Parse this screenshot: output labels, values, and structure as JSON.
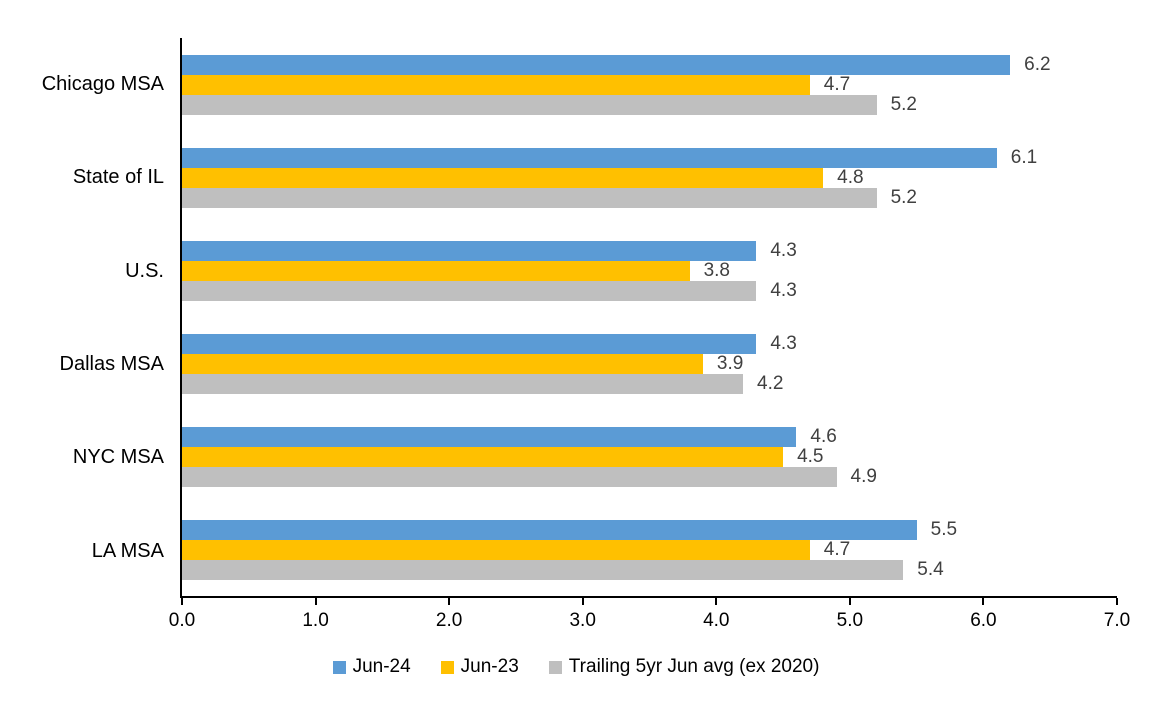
{
  "chart_data": {
    "type": "bar",
    "orientation": "horizontal",
    "title": "",
    "xlabel": "",
    "ylabel": "",
    "categories": [
      "Chicago MSA",
      "State of IL",
      "U.S.",
      "Dallas MSA",
      "NYC MSA",
      "LA MSA"
    ],
    "series": [
      {
        "name": "Jun-24",
        "color": "#5B9BD5",
        "values": [
          6.2,
          6.1,
          4.3,
          4.3,
          4.6,
          5.5
        ]
      },
      {
        "name": "Jun-23",
        "color": "#FFC000",
        "values": [
          4.7,
          4.8,
          3.8,
          3.9,
          4.5,
          4.7
        ]
      },
      {
        "name": "Trailing 5yr Jun avg (ex 2020)",
        "color": "#BFBFBF",
        "values": [
          5.2,
          5.2,
          4.3,
          4.2,
          4.9,
          5.4
        ]
      }
    ],
    "xlim": [
      0,
      7
    ],
    "x_ticks": [
      "0.0",
      "1.0",
      "2.0",
      "3.0",
      "4.0",
      "5.0",
      "6.0",
      "7.0"
    ],
    "data_labels": true,
    "data_label_color": "#404040",
    "axis_color": "#000000",
    "grid": false,
    "legend_position": "bottom"
  }
}
